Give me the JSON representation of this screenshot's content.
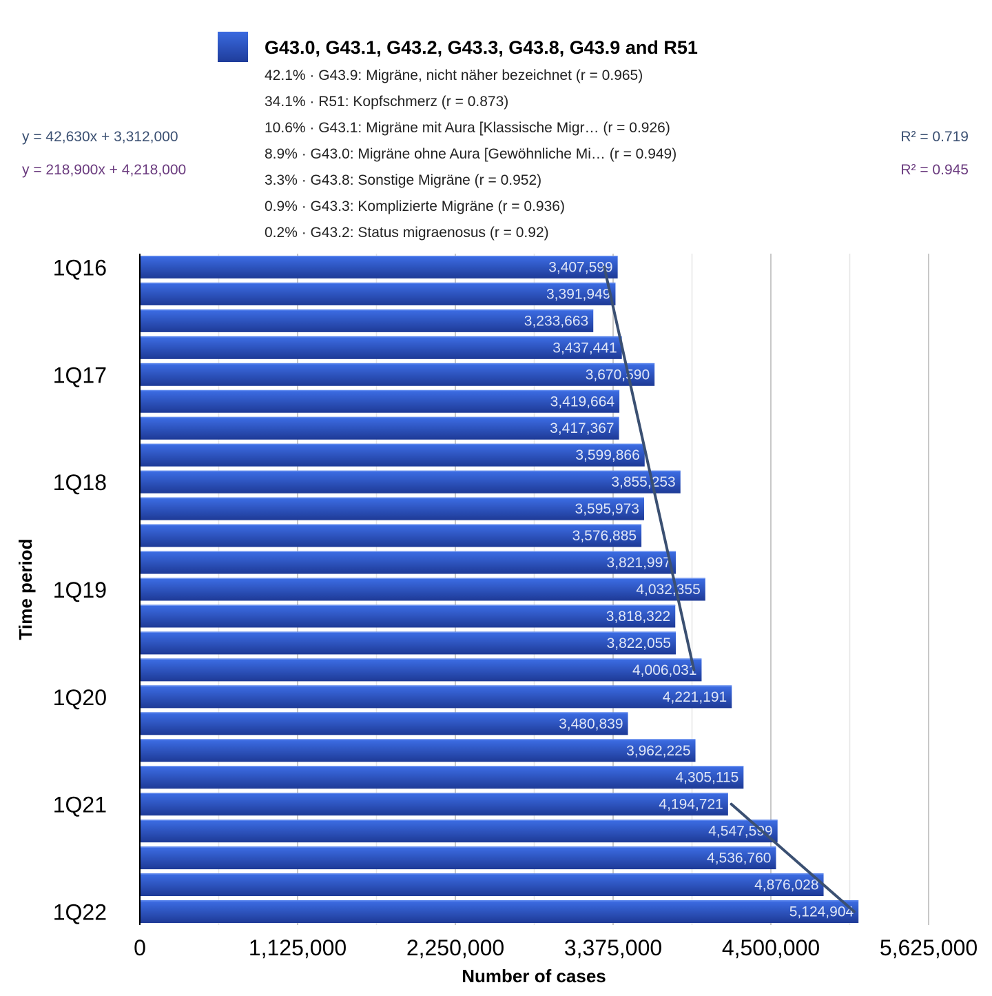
{
  "legend": {
    "color": "#2a52c9",
    "title": "G43.0, G43.1, G43.2, G43.3, G43.8, G43.9 and R51",
    "items": [
      "42.1% · G43.9: Migräne, nicht näher bezeichnet (r = 0.965)",
      "34.1% · R51: Kopfschmerz (r = 0.873)",
      "10.6% · G43.1: Migräne mit Aura [Klassische Migr… (r = 0.926)",
      "8.9% · G43.0: Migräne ohne Aura [Gewöhnliche Mi… (r = 0.949)",
      "3.3% · G43.8: Sonstige Migräne (r = 0.952)",
      "0.9% · G43.3: Komplizierte Migräne (r = 0.936)",
      "0.2% · G43.2: Status migraenosus (r = 0.92)"
    ]
  },
  "trends": [
    {
      "equation": "y = 42,630x + 3,312,000",
      "r2": "R² = 0.719",
      "color": "#3b5072"
    },
    {
      "equation": "y = 218,900x + 4,218,000",
      "r2": "R² = 0.945",
      "color": "#6a3a7e"
    }
  ],
  "chart_data": {
    "type": "bar",
    "orientation": "horizontal",
    "xlabel": "Number of cases",
    "ylabel": "Time period",
    "xlim": [
      0,
      5625000
    ],
    "xticks": [
      0,
      1125000,
      2250000,
      3375000,
      4500000,
      5625000
    ],
    "xtick_labels": [
      "0",
      "1,125,000",
      "2,250,000",
      "3,375,000",
      "4,500,000",
      "5,625,000"
    ],
    "ytick_labels": [
      {
        "label": "1Q16",
        "index": 0
      },
      {
        "label": "1Q17",
        "index": 4
      },
      {
        "label": "1Q18",
        "index": 8
      },
      {
        "label": "1Q19",
        "index": 12
      },
      {
        "label": "1Q20",
        "index": 16
      },
      {
        "label": "1Q21",
        "index": 20
      },
      {
        "label": "1Q22",
        "index": 24
      }
    ],
    "grid": true,
    "bar_color": "#2a52c9",
    "values": [
      3407599,
      3391949,
      3233663,
      3437441,
      3670590,
      3419664,
      3417367,
      3599866,
      3855253,
      3595973,
      3576885,
      3821997,
      4032355,
      3818322,
      3822055,
      4006031,
      4221191,
      3480839,
      3962225,
      4305115,
      4194721,
      4547599,
      4536760,
      4876028,
      5124904
    ],
    "data_labels": [
      "3,407,599",
      "3,391,949",
      "3,233,663",
      "3,437,441",
      "3,670,590",
      "3,419,664",
      "3,417,367",
      "3,599,866",
      "3,855,253",
      "3,595,973",
      "3,576,885",
      "3,821,997",
      "4,032,355",
      "3,818,322",
      "3,822,055",
      "4,006,031",
      "4,221,191",
      "3,480,839",
      "3,962,225",
      "4,305,115",
      "4,194,721",
      "4,547,599",
      "4,536,760",
      "4,876,028",
      "5,124,904"
    ],
    "trend_lines": [
      {
        "start_index": 0,
        "end_index": 15,
        "start_value": 3312000,
        "end_value": 3951450,
        "color": "#3b5072"
      },
      {
        "start_index": 20,
        "end_index": 24,
        "start_value": 4218000,
        "end_value": 5093600,
        "color": "#3b5072"
      }
    ]
  }
}
